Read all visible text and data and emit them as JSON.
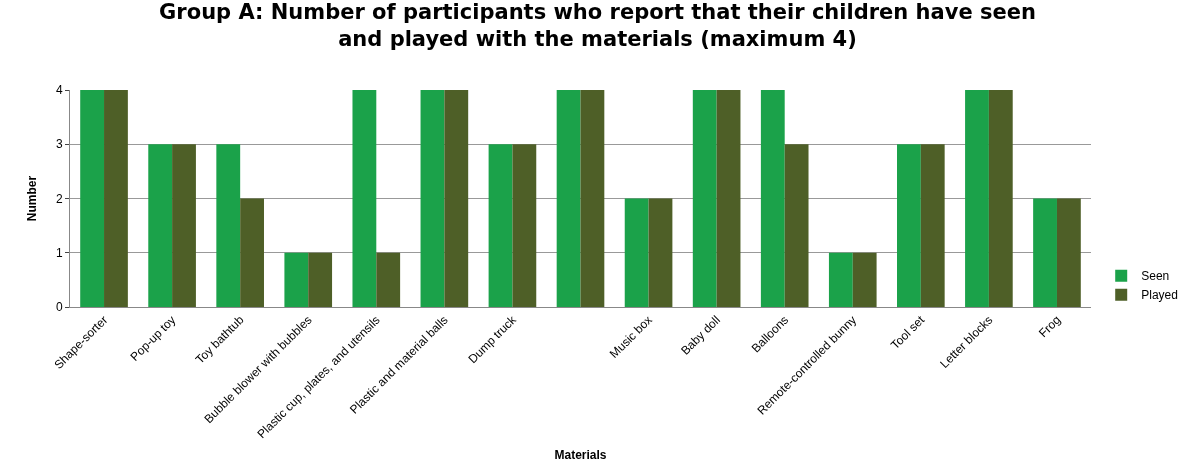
{
  "chart_data": {
    "type": "bar",
    "title": "Group A: Number of participants who report that their children have seen\nand played with the materials (maximum 4)",
    "xlabel": "Materials",
    "ylabel": "Number",
    "categories": [
      "Shape-sorter",
      "Pop-up toy",
      "Toy bathtub",
      "Bubble blower with bubbles",
      "Plastic cup, plates, and utensils",
      "Plastic and material balls",
      "Dump truck",
      null,
      "Music box",
      "Baby doll",
      "Balloons",
      "Remote-controlled bunny",
      "Tool set",
      "Letter blocks",
      "Frog"
    ],
    "series": [
      {
        "name": "Seen",
        "color": "#1ba24a",
        "values": [
          4,
          3,
          3,
          1,
          4,
          4,
          3,
          4,
          2,
          4,
          4,
          1,
          3,
          4,
          2
        ]
      },
      {
        "name": "Played",
        "color": "#4e5f27",
        "values": [
          4,
          3,
          2,
          1,
          1,
          4,
          3,
          4,
          2,
          4,
          3,
          1,
          3,
          4,
          2
        ]
      }
    ],
    "ylim": [
      0,
      4
    ],
    "yticks": [
      0,
      1,
      2,
      3,
      4
    ],
    "grid": "y",
    "legend": "right"
  }
}
